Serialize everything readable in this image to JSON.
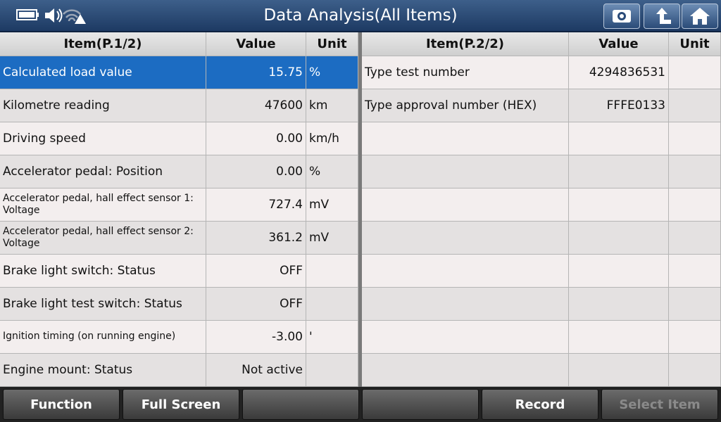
{
  "header": {
    "title": "Data Analysis(All Items)"
  },
  "left_table": {
    "columns": [
      "Item(P.1/2)",
      "Value",
      "Unit"
    ],
    "rows": [
      {
        "item": "Calculated load value",
        "value": "15.75",
        "unit": "%"
      },
      {
        "item": "Kilometre reading",
        "value": "47600",
        "unit": "km"
      },
      {
        "item": "Driving speed",
        "value": "0.00",
        "unit": "km/h"
      },
      {
        "item": "Accelerator pedal: Position",
        "value": "0.00",
        "unit": "%"
      },
      {
        "item": "Accelerator pedal, hall effect sensor 1: Voltage",
        "value": "727.4",
        "unit": "mV"
      },
      {
        "item": "Accelerator pedal, hall effect sensor 2: Voltage",
        "value": "361.2",
        "unit": "mV"
      },
      {
        "item": "Brake light switch: Status",
        "value": "OFF"
      },
      {
        "item": "Brake light test switch: Status",
        "value": "OFF"
      },
      {
        "item": "Ignition timing (on running engine)",
        "value": "-3.00",
        "unit": "'"
      },
      {
        "item": "Engine mount: Status",
        "value": "Not active"
      }
    ]
  },
  "right_table": {
    "columns": [
      "Item(P.2/2)",
      "Value",
      "Unit"
    ],
    "rows": [
      {
        "item": "Type test number",
        "value": "4294836531"
      },
      {
        "item": "Type approval number (HEX)",
        "value": "FFFE0133"
      }
    ]
  },
  "bottom_bar": {
    "buttons": [
      "Function",
      "Full Screen",
      "Record",
      "Select Item"
    ]
  }
}
